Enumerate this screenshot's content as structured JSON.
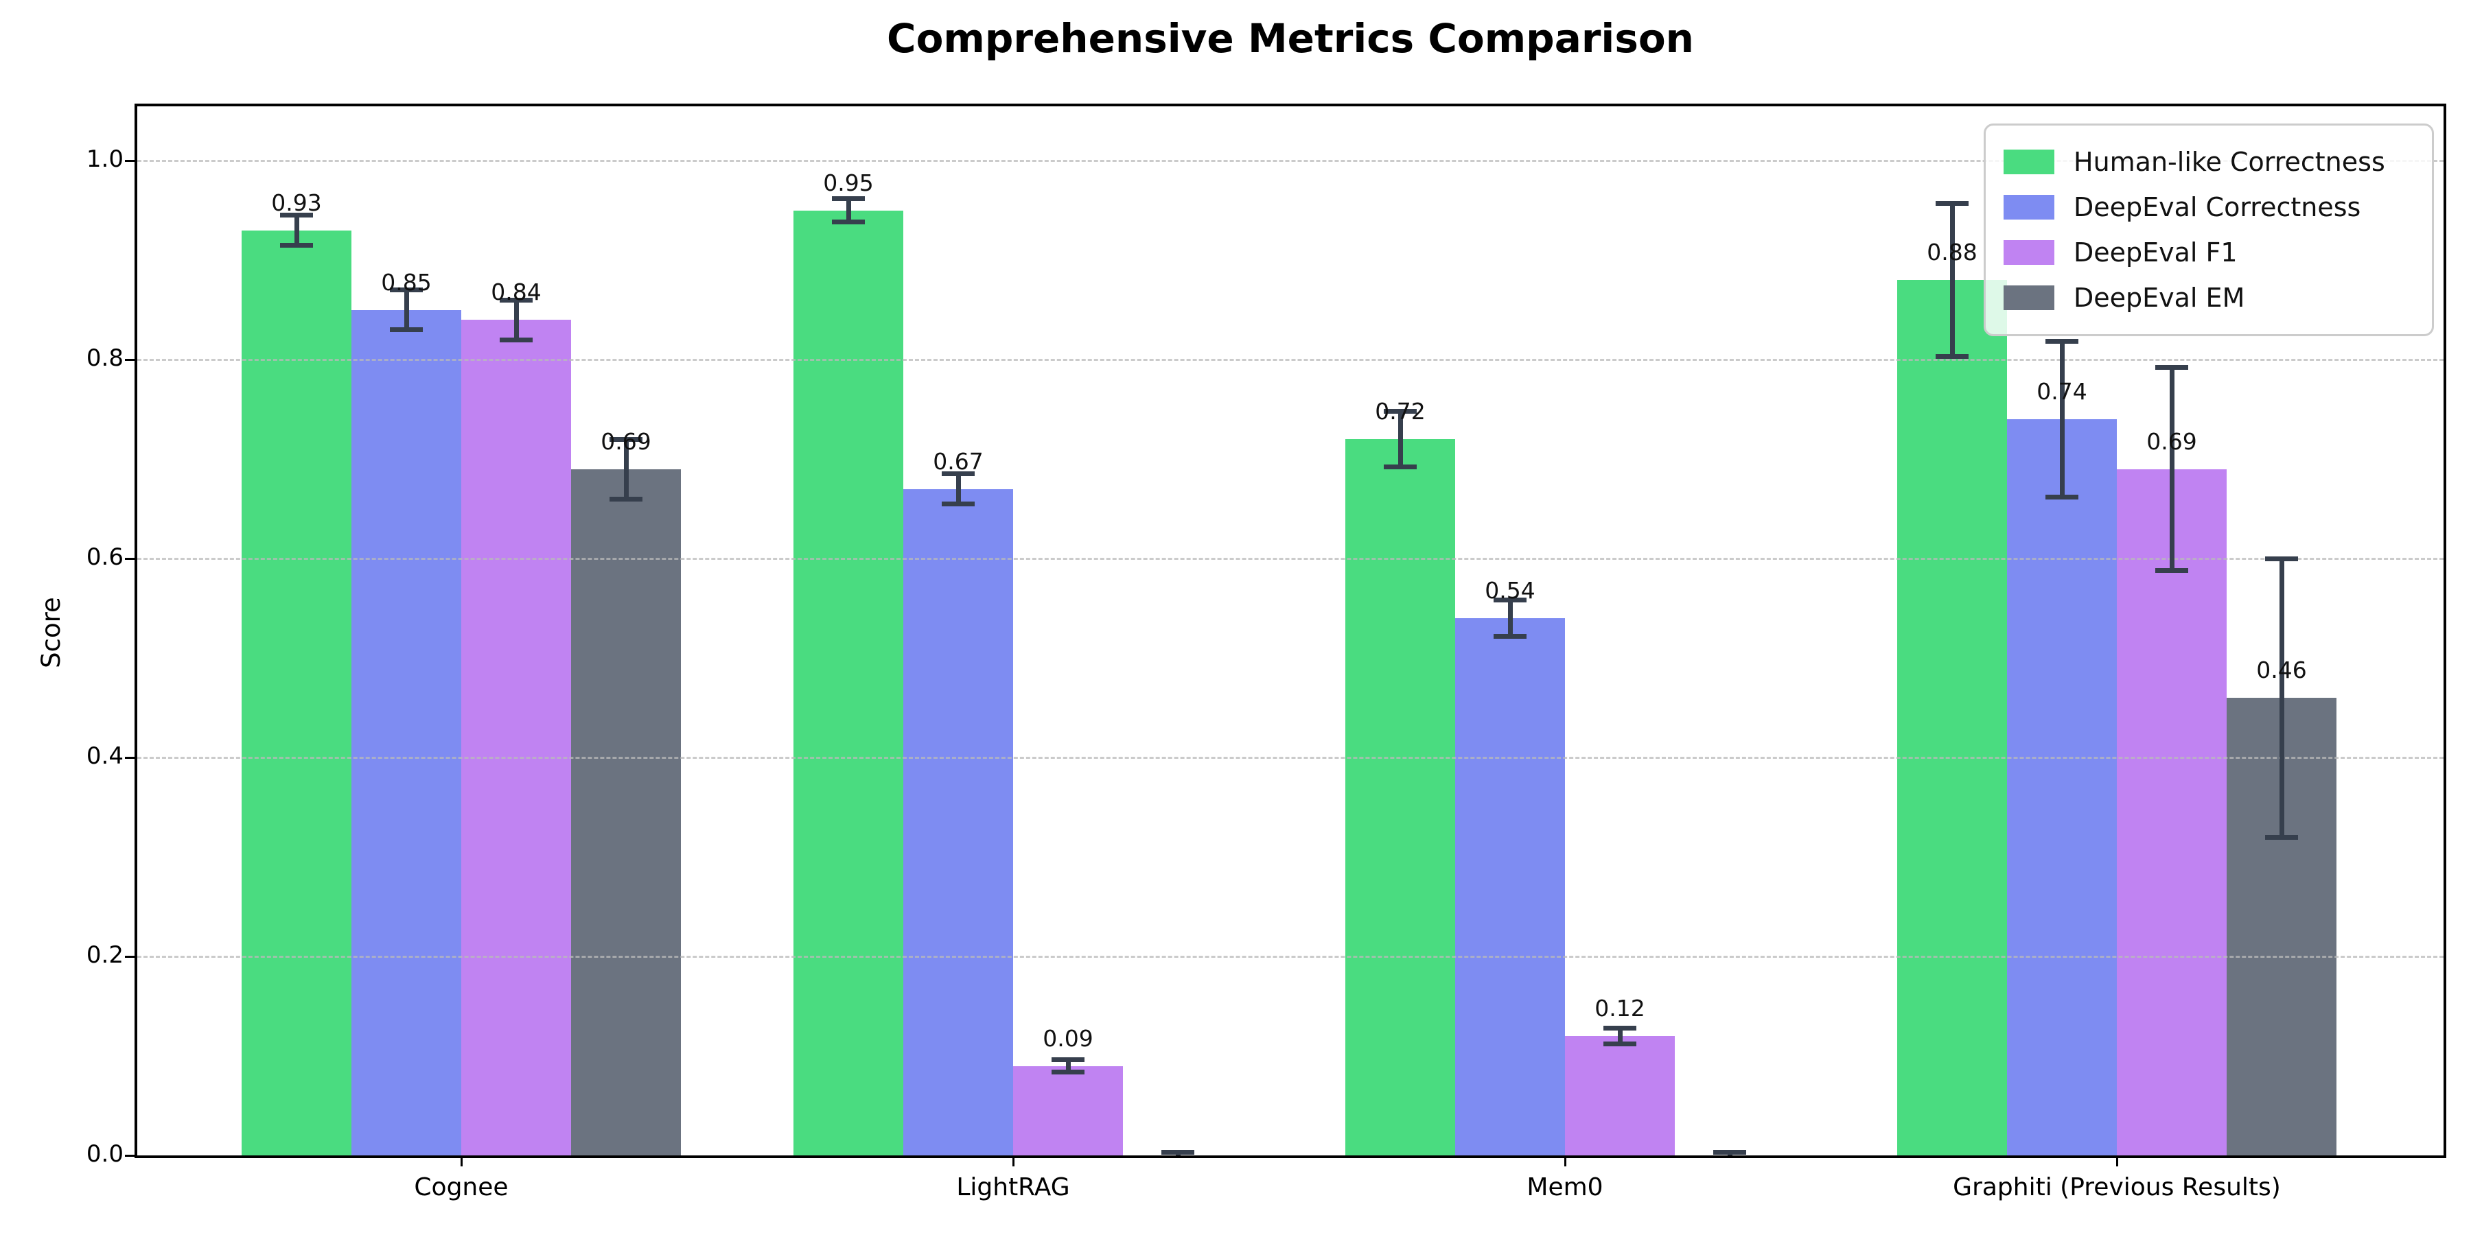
{
  "title": "Comprehensive Metrics Comparison",
  "chart_data": {
    "type": "bar",
    "title": "Comprehensive Metrics Comparison",
    "xlabel": "",
    "ylabel": "Score",
    "categories": [
      "Cognee",
      "LightRAG",
      "Mem0",
      "Graphiti (Previous Results)"
    ],
    "series": [
      {
        "name": "Human-like Correctness",
        "color": "#4adc80",
        "values": [
          0.93,
          0.95,
          0.72,
          0.88
        ],
        "errors": [
          0.015,
          0.012,
          0.028,
          0.077
        ],
        "labels": [
          "0.93",
          "0.95",
          "0.72",
          "0.88"
        ]
      },
      {
        "name": "DeepEval Correctness",
        "color": "#7e8cf2",
        "values": [
          0.85,
          0.67,
          0.54,
          0.74
        ],
        "errors": [
          0.02,
          0.015,
          0.018,
          0.078
        ],
        "labels": [
          "0.85",
          "0.67",
          "0.54",
          "0.74"
        ]
      },
      {
        "name": "DeepEval F1",
        "color": "#c083f2",
        "values": [
          0.84,
          0.09,
          0.12,
          0.69
        ],
        "errors": [
          0.02,
          0.006,
          0.008,
          0.102
        ],
        "labels": [
          "0.84",
          "0.09",
          "0.12",
          "0.69"
        ]
      },
      {
        "name": "DeepEval EM",
        "color": "#6b7380",
        "values": [
          0.69,
          0.0,
          0.0,
          0.46
        ],
        "errors": [
          0.03,
          0.003,
          0.003,
          0.14
        ],
        "labels": [
          "0.69",
          null,
          null,
          "0.46"
        ]
      }
    ],
    "y_ticks": [
      "0.0",
      "0.2",
      "0.4",
      "0.6",
      "0.8",
      "1.0"
    ],
    "ylim": [
      0,
      1.05
    ],
    "grid": "dashed-horizontal",
    "legend_position": "upper-right"
  },
  "colors": {
    "errorbar": "#363f4d",
    "grid": "#b9b9b9",
    "spine": "#000000",
    "legend_border": "#cccccc",
    "background": "#ffffff"
  }
}
